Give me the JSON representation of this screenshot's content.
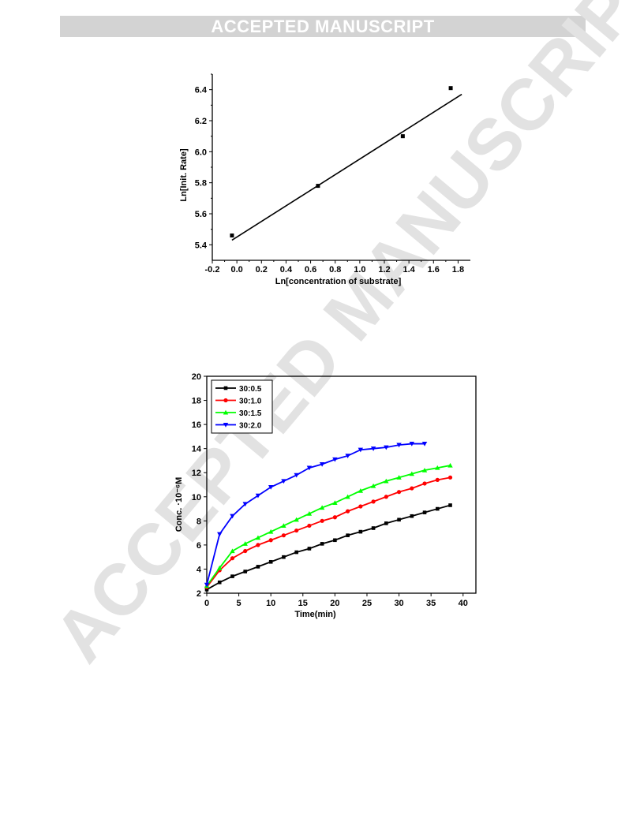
{
  "banner": {
    "text": "ACCEPTED MANUSCRIPT"
  },
  "watermark": {
    "text": "ACCEPTED MANUSCRIPT",
    "color": "#e2e2e2"
  },
  "chart_data": [
    {
      "type": "scatter",
      "xlabel": "Ln[concentration of substrate]",
      "ylabel": "Ln[Init. Rate]",
      "xlim": [
        -0.2,
        1.9
      ],
      "ylim": [
        5.3,
        6.5
      ],
      "x_ticks": [
        "-0.2",
        "0.0",
        "0.2",
        "0.4",
        "0.6",
        "0.8",
        "1.0",
        "1.2",
        "1.4",
        "1.6",
        "1.8"
      ],
      "y_ticks": [
        "5.4",
        "5.6",
        "5.8",
        "6.0",
        "6.2",
        "6.4"
      ],
      "points": {
        "x": [
          -0.04,
          0.66,
          1.35,
          1.74
        ],
        "y": [
          5.46,
          5.78,
          6.1,
          6.41
        ]
      },
      "fit_line": {
        "x": [
          -0.04,
          1.83
        ],
        "y": [
          5.43,
          6.37
        ]
      },
      "grid": false
    },
    {
      "type": "line",
      "xlabel": "Time(min)",
      "ylabel": "Conc. ·10⁻⁶M",
      "xlim": [
        0,
        42
      ],
      "ylim": [
        2,
        20
      ],
      "x_ticks": [
        "0",
        "5",
        "10",
        "15",
        "20",
        "25",
        "30",
        "35",
        "40"
      ],
      "y_ticks": [
        "2",
        "4",
        "6",
        "8",
        "10",
        "12",
        "14",
        "16",
        "18",
        "20"
      ],
      "legend_position": "top-left",
      "grid": false,
      "series": [
        {
          "name": "30:0.5",
          "color": "#000000",
          "marker": "square",
          "x": [
            0,
            2,
            4,
            6,
            8,
            10,
            12,
            14,
            16,
            18,
            20,
            22,
            24,
            26,
            28,
            30,
            32,
            34,
            36,
            38
          ],
          "y": [
            2.3,
            2.9,
            3.4,
            3.8,
            4.2,
            4.6,
            5.0,
            5.4,
            5.7,
            6.1,
            6.4,
            6.8,
            7.1,
            7.4,
            7.8,
            8.1,
            8.4,
            8.7,
            9.0,
            9.3
          ]
        },
        {
          "name": "30:1.0",
          "color": "#ff0000",
          "marker": "circle",
          "x": [
            0,
            2,
            4,
            6,
            8,
            10,
            12,
            14,
            16,
            18,
            20,
            22,
            24,
            26,
            28,
            30,
            32,
            34,
            36,
            38
          ],
          "y": [
            2.5,
            3.9,
            4.9,
            5.5,
            6.0,
            6.4,
            6.8,
            7.2,
            7.6,
            8.0,
            8.3,
            8.8,
            9.2,
            9.6,
            10.0,
            10.4,
            10.7,
            11.1,
            11.4,
            11.6
          ]
        },
        {
          "name": "30:1.5",
          "color": "#00ff00",
          "marker": "triangle-up",
          "x": [
            0,
            2,
            4,
            6,
            8,
            10,
            12,
            14,
            16,
            18,
            20,
            22,
            24,
            26,
            28,
            30,
            32,
            34,
            36,
            38
          ],
          "y": [
            2.6,
            4.1,
            5.5,
            6.1,
            6.6,
            7.1,
            7.6,
            8.1,
            8.6,
            9.1,
            9.5,
            10.0,
            10.5,
            10.9,
            11.3,
            11.6,
            11.9,
            12.2,
            12.4,
            12.6
          ]
        },
        {
          "name": "30:2.0",
          "color": "#0000ff",
          "marker": "triangle-down",
          "x": [
            0,
            2,
            4,
            6,
            8,
            10,
            12,
            14,
            16,
            18,
            20,
            22,
            24,
            26,
            28,
            30,
            32,
            34
          ],
          "y": [
            2.7,
            6.9,
            8.4,
            9.4,
            10.1,
            10.8,
            11.3,
            11.8,
            12.4,
            12.7,
            13.1,
            13.4,
            13.9,
            14.0,
            14.1,
            14.3,
            14.4,
            14.4
          ]
        }
      ]
    }
  ]
}
